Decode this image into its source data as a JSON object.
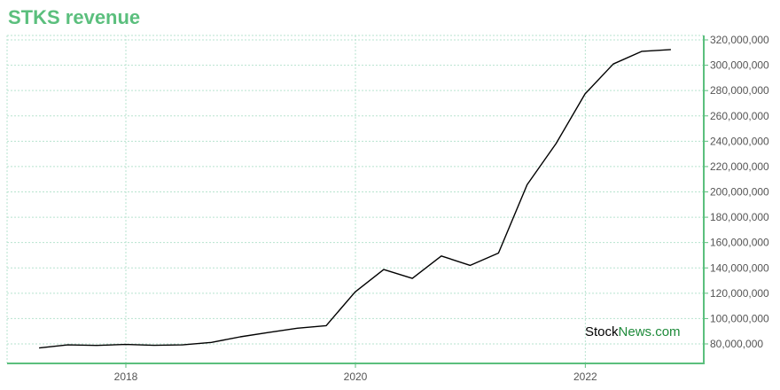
{
  "chart_data": {
    "type": "line",
    "title": "STKS revenue",
    "xlabel": "",
    "ylabel": "",
    "x_tick_labels": [
      "2018",
      "2020",
      "2022"
    ],
    "y_tick_labels": [
      "80,000,000",
      "100,000,000",
      "120,000,000",
      "140,000,000",
      "160,000,000",
      "180,000,000",
      "200,000,000",
      "220,000,000",
      "240,000,000",
      "260,000,000",
      "280,000,000",
      "300,000,000",
      "320,000,000"
    ],
    "ylim": [
      72000000,
      325000000
    ],
    "grid": true,
    "series": [
      {
        "x": [
          "2017-03-31",
          "2017-06-30",
          "2017-09-30",
          "2017-12-31",
          "2018-03-31",
          "2018-06-30",
          "2018-09-30",
          "2018-12-31",
          "2019-03-31",
          "2019-06-30",
          "2019-09-30",
          "2019-12-31",
          "2020-03-31",
          "2020-06-30",
          "2020-09-30",
          "2020-12-31",
          "2021-03-31",
          "2021-06-30",
          "2021-09-30",
          "2021-12-31",
          "2022-03-31",
          "2022-06-30",
          "2022-09-30"
        ],
        "values": [
          76800000,
          79200000,
          78800000,
          79600000,
          78900000,
          79200000,
          81200000,
          85600000,
          89000000,
          92400000,
          94400000,
          121000000,
          138700000,
          131700000,
          149400000,
          142000000,
          151700000,
          205700000,
          238200000,
          277300000,
          301000000,
          311000000,
          312400000
        ],
        "color": "#000000"
      }
    ]
  },
  "watermark": {
    "part1": "Stock",
    "part2": "News.com"
  },
  "colors": {
    "accent": "#5bbf7d",
    "grid": "#b7e3cf",
    "line": "#000000"
  }
}
